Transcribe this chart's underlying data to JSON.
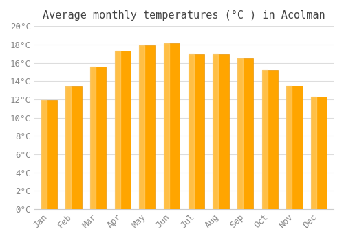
{
  "title": "Average monthly temperatures (°C ) in Acolman",
  "months": [
    "Jan",
    "Feb",
    "Mar",
    "Apr",
    "May",
    "Jun",
    "Jul",
    "Aug",
    "Sep",
    "Oct",
    "Nov",
    "Dec"
  ],
  "values": [
    11.9,
    13.4,
    15.6,
    17.3,
    17.9,
    18.1,
    16.9,
    16.9,
    16.5,
    15.2,
    13.5,
    12.3
  ],
  "bar_color": "#FFA500",
  "bar_edge_color": "#E8960A",
  "background_color": "#ffffff",
  "grid_color": "#dddddd",
  "ylim": [
    0,
    20
  ],
  "ytick_step": 2,
  "title_fontsize": 11,
  "tick_fontsize": 9,
  "font_family": "monospace"
}
